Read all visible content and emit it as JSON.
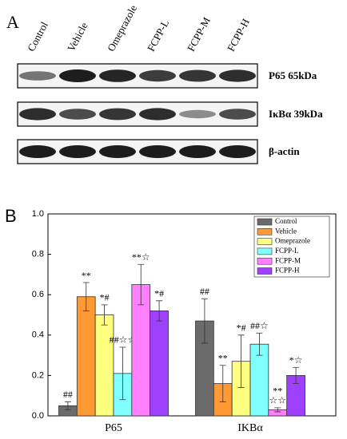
{
  "panel_a": {
    "label": "A",
    "lanes": [
      "Control",
      "Vehicle",
      "Omeprazole",
      "FCPP-L",
      "FCPP-M",
      "FCPP-H"
    ],
    "blots": [
      "P65 65kDa",
      "IκBα 39kDa",
      "β-actin"
    ]
  },
  "chart_data": {
    "type": "bar",
    "panel_label": "B",
    "categories": [
      "P65",
      "IKBα"
    ],
    "series": [
      {
        "name": "Control",
        "color": "#6b6b6b",
        "values": [
          0.05,
          0.47
        ],
        "errors": [
          0.02,
          0.11
        ],
        "annotations": [
          [
            "##"
          ],
          [
            "##"
          ]
        ]
      },
      {
        "name": "Vehicle",
        "color": "#ff9933",
        "values": [
          0.59,
          0.16
        ],
        "errors": [
          0.07,
          0.09
        ],
        "annotations": [
          [
            "**"
          ],
          [
            "**"
          ]
        ]
      },
      {
        "name": "Omeprazole",
        "color": "#ffff80",
        "values": [
          0.5,
          0.27
        ],
        "errors": [
          0.05,
          0.13
        ],
        "annotations": [
          [
            "*#"
          ],
          [
            "*#"
          ]
        ]
      },
      {
        "name": "FCPP-L",
        "color": "#80ffff",
        "values": [
          0.21,
          0.355
        ],
        "errors": [
          0.13,
          0.055
        ],
        "annotations": [
          [
            "##☆☆"
          ],
          [
            "##☆"
          ]
        ]
      },
      {
        "name": "FCPP-M",
        "color": "#ff80ff",
        "values": [
          0.65,
          0.03
        ],
        "errors": [
          0.1,
          0.01
        ],
        "annotations": [
          [
            "**☆"
          ],
          [
            "**",
            "☆☆"
          ]
        ]
      },
      {
        "name": "FCPP-H",
        "color": "#a040ff",
        "values": [
          0.52,
          0.2
        ],
        "errors": [
          0.05,
          0.04
        ],
        "annotations": [
          [
            "*#"
          ],
          [
            "*☆"
          ]
        ]
      }
    ],
    "ylim": [
      0,
      1
    ],
    "yticks": [
      {
        "value": 0,
        "label": "0.0"
      },
      {
        "value": 0.2,
        "label": "0.2"
      },
      {
        "value": 0.4,
        "label": "0.4"
      },
      {
        "value": 0.6,
        "label": "0.6"
      },
      {
        "value": 0.8,
        "label": "0.8"
      },
      {
        "value": 1,
        "label": "1.0"
      }
    ],
    "legend": "upper right"
  }
}
